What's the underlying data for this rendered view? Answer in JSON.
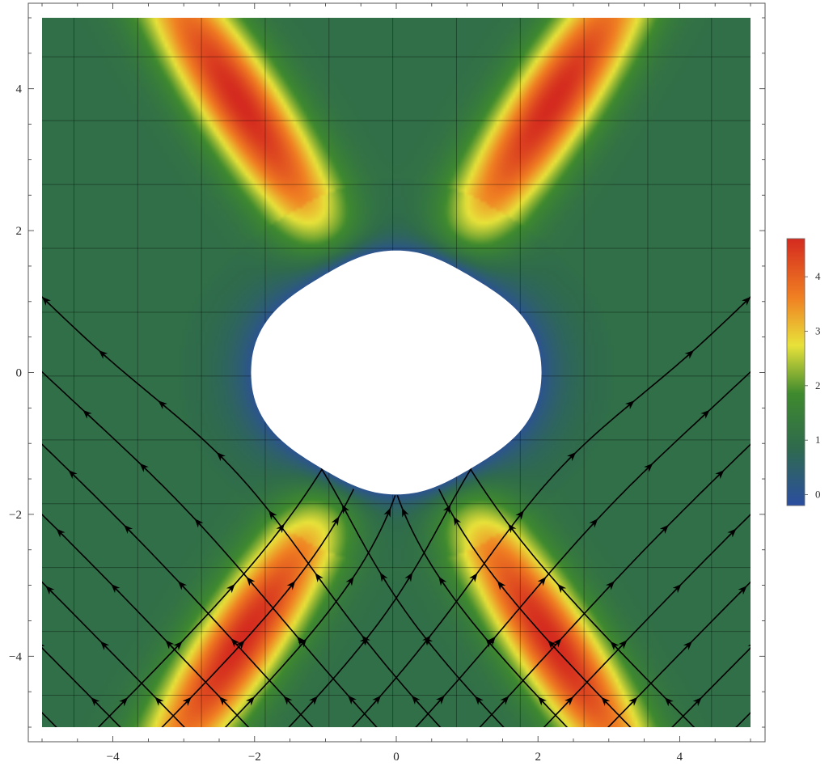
{
  "chart_data": {
    "type": "heatmap",
    "subtype": "stream density plot with color-scaled magnitude",
    "title": "",
    "xlabel": "",
    "ylabel": "",
    "xlim": [
      -5,
      5
    ],
    "ylim": [
      -5,
      5
    ],
    "x_ticks": [
      -4,
      -2,
      0,
      2,
      4
    ],
    "y_ticks": [
      -4,
      -2,
      0,
      2,
      4
    ],
    "x_tick_labels": [
      "−4",
      "−2",
      "0",
      "2",
      "4"
    ],
    "y_tick_labels": [
      "−4",
      "−2",
      "0",
      "2",
      "4"
    ],
    "grid": true,
    "grid_spacing": 0.9,
    "excluded_region": {
      "shape": "rounded lens",
      "x_extent": [
        -2.05,
        2.05
      ],
      "y_extent": [
        -1.72,
        1.72
      ]
    },
    "magnitude_peaks": [
      {
        "x": -2.2,
        "y": 3.8,
        "value": 4.7
      },
      {
        "x": 2.2,
        "y": 3.8,
        "value": 4.7
      },
      {
        "x": -2.2,
        "y": -3.8,
        "value": 4.7
      },
      {
        "x": 2.2,
        "y": -3.8,
        "value": 4.7
      }
    ],
    "background_value": 1.0,
    "minimum_value_near_hole": 0.0,
    "stream_directions": [
      "diagonal up-right",
      "diagonal up-left"
    ],
    "colorbar": {
      "range": [
        -0.2,
        4.7
      ],
      "ticks": [
        0,
        1,
        2,
        3,
        4
      ],
      "tick_labels": [
        "0",
        "1",
        "2",
        "3",
        "4"
      ],
      "placement": "right",
      "colors": [
        "#2b4ea0",
        "#2f6b4c",
        "#3f8a2e",
        "#e8e23a",
        "#f07f22",
        "#d42a1f"
      ]
    }
  }
}
